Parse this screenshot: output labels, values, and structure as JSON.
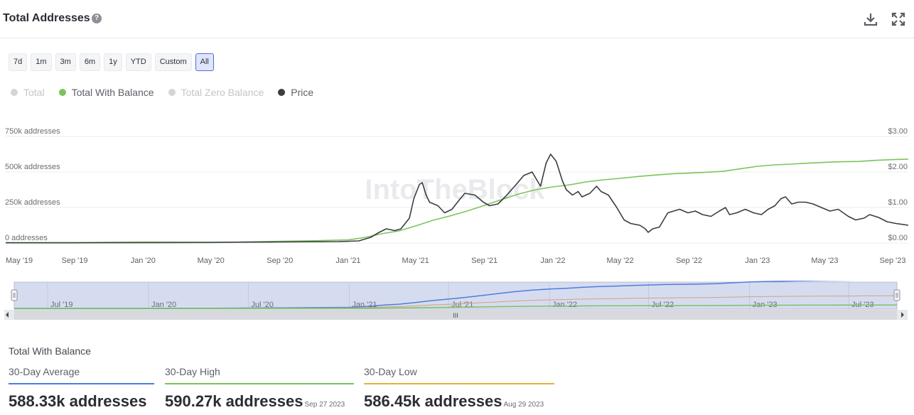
{
  "header": {
    "title": "Total Addresses",
    "help_icon": "?",
    "download_icon": "download-icon",
    "fullscreen_icon": "fullscreen-icon"
  },
  "ranges": [
    "7d",
    "1m",
    "3m",
    "6m",
    "1y",
    "YTD",
    "Custom",
    "All"
  ],
  "active_range": "All",
  "legend": [
    {
      "label": "Total",
      "color": "#d3d5d9",
      "active": false
    },
    {
      "label": "Total With Balance",
      "color": "#7cc35b",
      "active": true
    },
    {
      "label": "Total Zero Balance",
      "color": "#d3d5d9",
      "active": false
    },
    {
      "label": "Price",
      "color": "#3b3d43",
      "active": true
    }
  ],
  "watermark": "IntoTheBlock",
  "colors": {
    "balance": "#7cc35b",
    "price": "#3b3d43",
    "avg": "#4f7ddc",
    "high": "#7cc35b",
    "low": "#e2b33c",
    "nav_total": "#4f7ddc",
    "nav_zero": "#d8a07d"
  },
  "chart_data": {
    "type": "line",
    "x_ticks": [
      "May '19",
      "Sep '19",
      "Jan '20",
      "May '20",
      "Sep '20",
      "Jan '21",
      "May '21",
      "Sep '21",
      "Jan '22",
      "May '22",
      "Sep '22",
      "Jan '23",
      "May '23",
      "Sep '23"
    ],
    "y_left_ticks": [
      "0 addresses",
      "250k addresses",
      "500k addresses",
      "750k addresses"
    ],
    "y_right_ticks": [
      "$0.00",
      "$1.00",
      "$2.00",
      "$3.00"
    ],
    "y_left_range": [
      0,
      750000
    ],
    "y_right_range": [
      0,
      3
    ],
    "grid": true,
    "series": [
      {
        "name": "Total With Balance",
        "axis": "left",
        "points": [
          [
            "2019-05-01",
            0
          ],
          [
            "2019-09-01",
            0
          ],
          [
            "2020-01-01",
            0
          ],
          [
            "2020-05-01",
            3000
          ],
          [
            "2020-09-01",
            12000
          ],
          [
            "2020-11-01",
            16000
          ],
          [
            "2021-01-01",
            22000
          ],
          [
            "2021-02-01",
            40000
          ],
          [
            "2021-03-01",
            65000
          ],
          [
            "2021-04-01",
            85000
          ],
          [
            "2021-05-01",
            120000
          ],
          [
            "2021-06-01",
            160000
          ],
          [
            "2021-07-01",
            190000
          ],
          [
            "2021-08-01",
            225000
          ],
          [
            "2021-09-01",
            265000
          ],
          [
            "2021-10-01",
            305000
          ],
          [
            "2021-11-01",
            345000
          ],
          [
            "2021-12-01",
            375000
          ],
          [
            "2022-01-01",
            395000
          ],
          [
            "2022-02-01",
            410000
          ],
          [
            "2022-03-01",
            430000
          ],
          [
            "2022-04-01",
            445000
          ],
          [
            "2022-05-01",
            455000
          ],
          [
            "2022-06-01",
            468000
          ],
          [
            "2022-07-01",
            478000
          ],
          [
            "2022-08-01",
            487000
          ],
          [
            "2022-09-01",
            492000
          ],
          [
            "2022-10-01",
            498000
          ],
          [
            "2022-11-01",
            505000
          ],
          [
            "2022-12-01",
            522000
          ],
          [
            "2023-01-01",
            540000
          ],
          [
            "2023-02-01",
            550000
          ],
          [
            "2023-03-01",
            555000
          ],
          [
            "2023-04-01",
            562000
          ],
          [
            "2023-05-01",
            568000
          ],
          [
            "2023-06-01",
            572000
          ],
          [
            "2023-07-01",
            574000
          ],
          [
            "2023-08-01",
            582000
          ],
          [
            "2023-09-01",
            587000
          ],
          [
            "2023-09-27",
            590000
          ]
        ]
      },
      {
        "name": "Price",
        "axis": "right",
        "points": [
          [
            "2019-05-01",
            0.01
          ],
          [
            "2019-09-01",
            0.01
          ],
          [
            "2020-01-01",
            0.02
          ],
          [
            "2020-05-01",
            0.02
          ],
          [
            "2020-09-01",
            0.03
          ],
          [
            "2020-12-15",
            0.04
          ],
          [
            "2021-01-20",
            0.06
          ],
          [
            "2021-02-10",
            0.16
          ],
          [
            "2021-02-25",
            0.3
          ],
          [
            "2021-03-10",
            0.4
          ],
          [
            "2021-03-25",
            0.35
          ],
          [
            "2021-04-05",
            0.4
          ],
          [
            "2021-04-20",
            0.7
          ],
          [
            "2021-04-28",
            1.25
          ],
          [
            "2021-05-08",
            1.65
          ],
          [
            "2021-05-13",
            1.7
          ],
          [
            "2021-05-20",
            1.35
          ],
          [
            "2021-05-26",
            1.15
          ],
          [
            "2021-06-10",
            1.05
          ],
          [
            "2021-06-22",
            0.85
          ],
          [
            "2021-07-05",
            0.95
          ],
          [
            "2021-07-20",
            1.25
          ],
          [
            "2021-07-28",
            1.4
          ],
          [
            "2021-08-15",
            1.35
          ],
          [
            "2021-08-30",
            1.15
          ],
          [
            "2021-09-10",
            1.05
          ],
          [
            "2021-09-25",
            1.1
          ],
          [
            "2021-10-08",
            1.3
          ],
          [
            "2021-10-25",
            1.6
          ],
          [
            "2021-11-10",
            1.9
          ],
          [
            "2021-11-25",
            2.0
          ],
          [
            "2021-12-10",
            1.6
          ],
          [
            "2021-12-20",
            2.25
          ],
          [
            "2021-12-28",
            2.5
          ],
          [
            "2022-01-07",
            2.3
          ],
          [
            "2022-01-18",
            1.75
          ],
          [
            "2022-01-25",
            1.5
          ],
          [
            "2022-02-05",
            1.35
          ],
          [
            "2022-02-15",
            1.45
          ],
          [
            "2022-02-22",
            1.3
          ],
          [
            "2022-03-08",
            1.4
          ],
          [
            "2022-03-20",
            1.6
          ],
          [
            "2022-03-28",
            1.45
          ],
          [
            "2022-04-10",
            1.35
          ],
          [
            "2022-04-25",
            1.0
          ],
          [
            "2022-05-08",
            0.65
          ],
          [
            "2022-05-20",
            0.55
          ],
          [
            "2022-06-05",
            0.5
          ],
          [
            "2022-06-15",
            0.4
          ],
          [
            "2022-06-20",
            0.3
          ],
          [
            "2022-06-28",
            0.4
          ],
          [
            "2022-07-10",
            0.45
          ],
          [
            "2022-07-25",
            0.85
          ],
          [
            "2022-08-15",
            0.95
          ],
          [
            "2022-08-30",
            0.85
          ],
          [
            "2022-09-12",
            0.9
          ],
          [
            "2022-09-25",
            0.8
          ],
          [
            "2022-10-10",
            0.75
          ],
          [
            "2022-10-25",
            0.9
          ],
          [
            "2022-11-05",
            1.0
          ],
          [
            "2022-11-12",
            0.8
          ],
          [
            "2022-11-25",
            0.85
          ],
          [
            "2022-12-10",
            0.95
          ],
          [
            "2022-12-25",
            0.85
          ],
          [
            "2023-01-08",
            0.8
          ],
          [
            "2023-01-20",
            0.95
          ],
          [
            "2023-02-01",
            1.05
          ],
          [
            "2023-02-12",
            1.25
          ],
          [
            "2023-02-20",
            1.3
          ],
          [
            "2023-03-03",
            1.1
          ],
          [
            "2023-03-15",
            1.15
          ],
          [
            "2023-03-28",
            1.15
          ],
          [
            "2023-04-10",
            1.1
          ],
          [
            "2023-04-25",
            1.0
          ],
          [
            "2023-05-10",
            0.9
          ],
          [
            "2023-05-25",
            0.95
          ],
          [
            "2023-06-12",
            0.75
          ],
          [
            "2023-06-25",
            0.65
          ],
          [
            "2023-07-10",
            0.7
          ],
          [
            "2023-07-20",
            0.8
          ],
          [
            "2023-08-05",
            0.72
          ],
          [
            "2023-08-20",
            0.6
          ],
          [
            "2023-09-05",
            0.55
          ],
          [
            "2023-09-27",
            0.5
          ]
        ]
      }
    ],
    "navigator": {
      "x_ticks": [
        "Jul '19",
        "Jan '20",
        "Jul '20",
        "Jan '21",
        "Jul '21",
        "Jan '22",
        "Jul '22",
        "Jan '23",
        "Jul '23"
      ],
      "handle_icon": "III"
    }
  },
  "stats": {
    "title": "Total With Balance",
    "items": [
      {
        "label": "30-Day Average",
        "value": "588.33k addresses",
        "date": "",
        "color": "#4f7ddc"
      },
      {
        "label": "30-Day High",
        "value": "590.27k addresses",
        "date": "Sep 27 2023",
        "color": "#7cc35b"
      },
      {
        "label": "30-Day Low",
        "value": "586.45k addresses",
        "date": "Aug 29 2023",
        "color": "#e2b33c"
      }
    ]
  }
}
